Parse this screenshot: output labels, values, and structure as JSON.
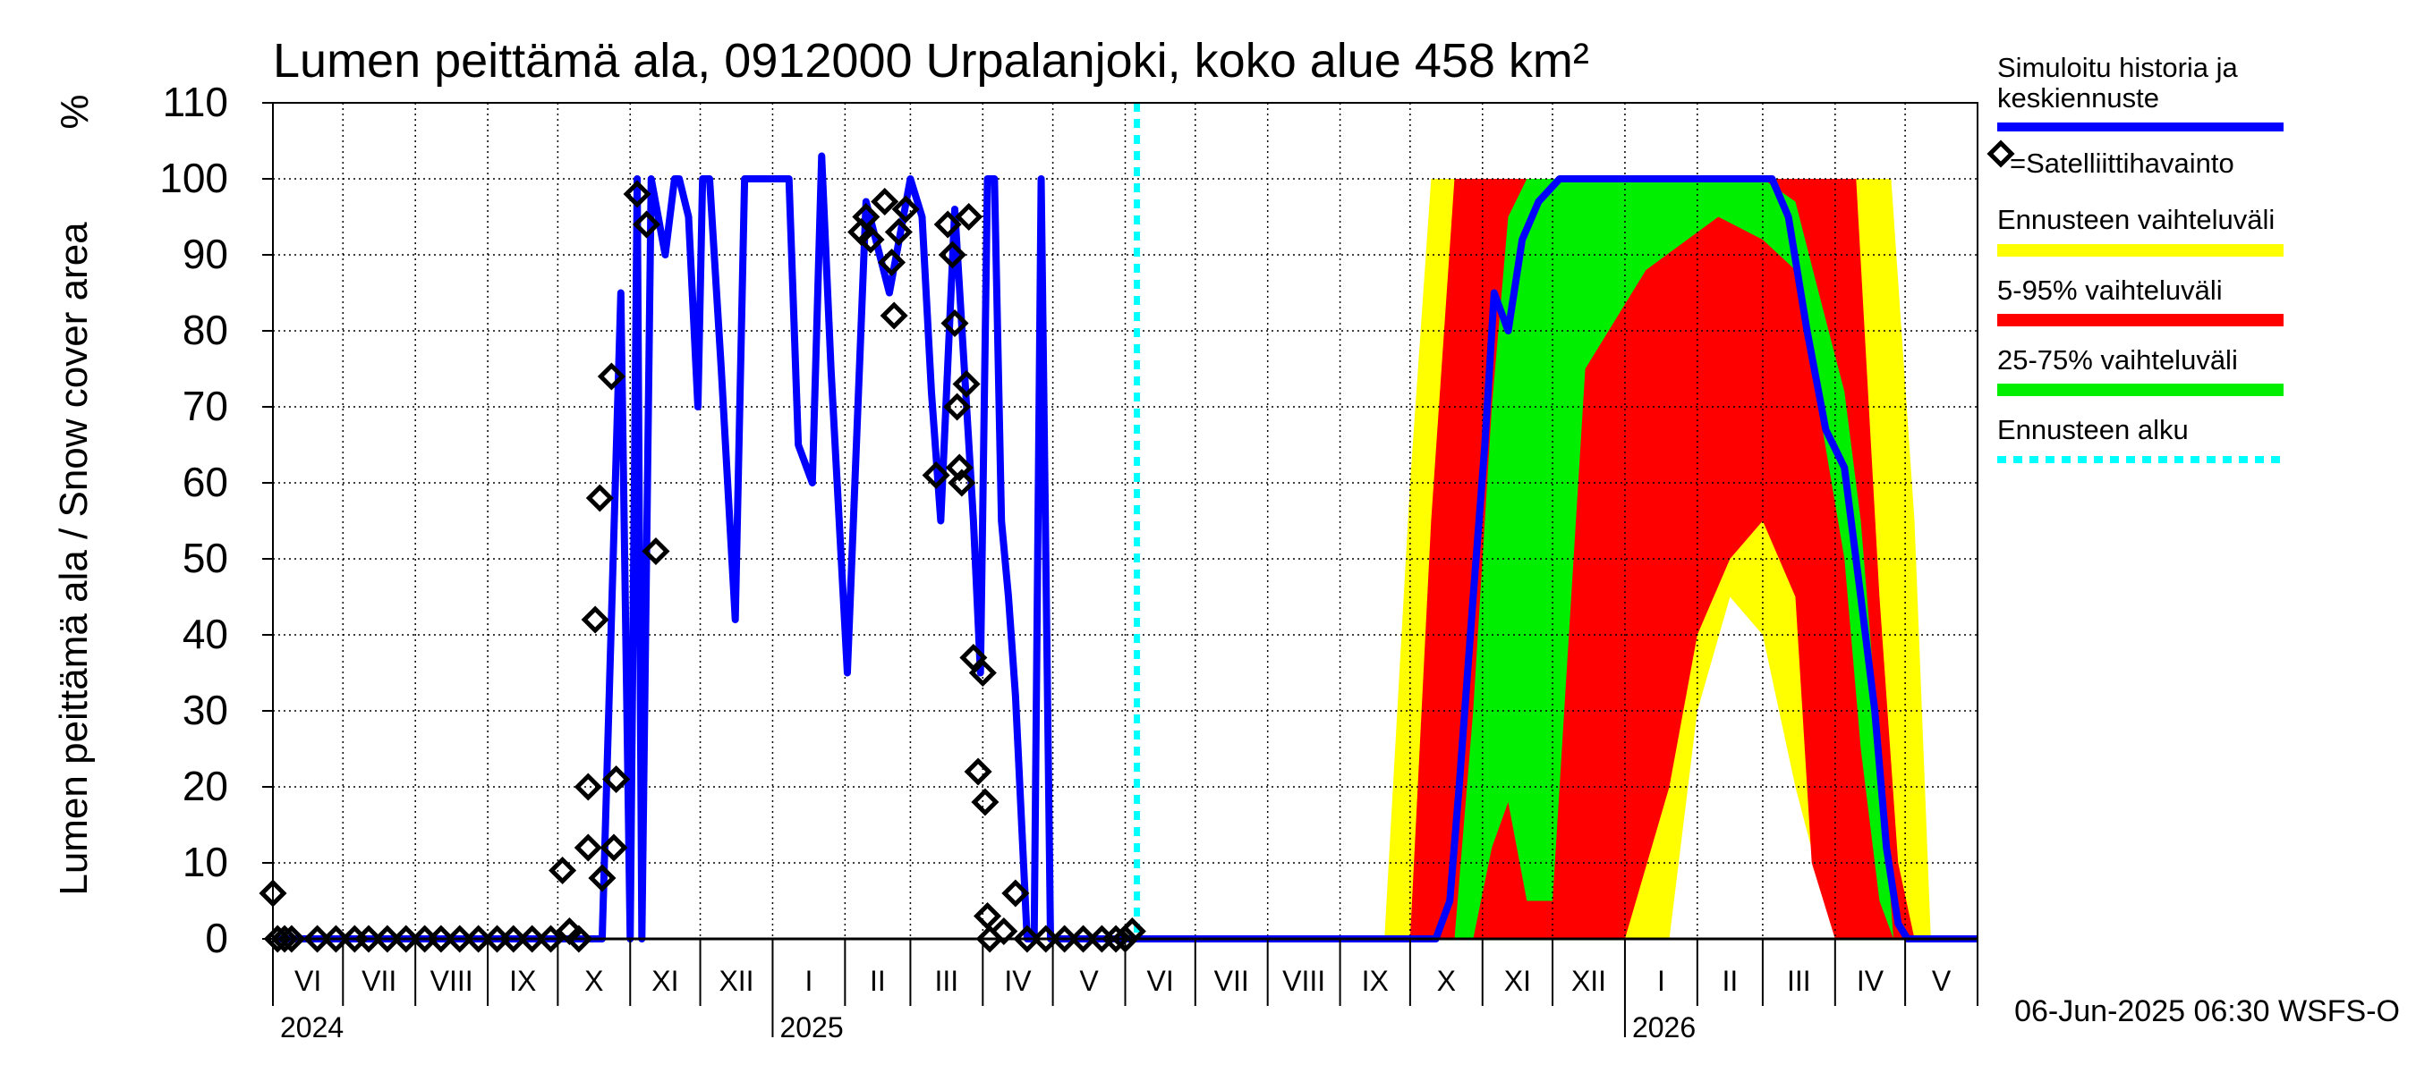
{
  "chart_data": {
    "type": "area",
    "title": "Lumen peittämä ala, 0912000 Urpalanjoki, koko alue 458 km²",
    "ylabel": "Lumen peittämä ala / Snow cover area",
    "yunit": "%",
    "ylim": [
      0,
      110
    ],
    "yticks": [
      0,
      10,
      20,
      30,
      40,
      50,
      60,
      70,
      80,
      90,
      100,
      110
    ],
    "xlim": [
      "2024-06-01",
      "2026-06-01"
    ],
    "grid": true,
    "legend_position": "right",
    "month_labels": [
      "VI",
      "VII",
      "VIII",
      "IX",
      "X",
      "XI",
      "XII",
      "I",
      "II",
      "III",
      "IV",
      "V",
      "VI",
      "VII",
      "VIII",
      "IX",
      "X",
      "XI",
      "XII",
      "I",
      "II",
      "III",
      "IV",
      "V"
    ],
    "year_labels": [
      "2024",
      "2025",
      "2026"
    ],
    "forecast_start": "2025-06-06",
    "footer": "06-Jun-2025 06:30 WSFS-O",
    "legend": {
      "simulated": "Simuloitu historia ja keskiennuste",
      "satellite": "=Satelliittihavainto",
      "range_full": "Ennusteen vaihteluväli",
      "range_5_95": "5-95% vaihteluväli",
      "range_25_75": "25-75% vaihteluväli",
      "forecast_start": "Ennusteen alku"
    },
    "colors": {
      "simulated": "#0000ff",
      "satellite": "#000000",
      "range_full": "#ffff00",
      "range_5_95": "#ff0000",
      "range_25_75": "#00ee00",
      "forecast_start": "#00ffff"
    },
    "history": {
      "x": [
        "2024-06-01",
        "2024-10-20",
        "2024-10-28",
        "2024-11-01",
        "2024-11-04",
        "2024-11-06",
        "2024-11-10",
        "2024-11-16",
        "2024-11-20",
        "2024-11-22",
        "2024-11-26",
        "2024-11-30",
        "2024-12-02",
        "2024-12-05",
        "2024-12-10",
        "2024-12-16",
        "2024-12-20",
        "2024-12-28",
        "2025-01-08",
        "2025-01-12",
        "2025-01-18",
        "2025-01-22",
        "2025-01-26",
        "2025-02-02",
        "2025-02-10",
        "2025-02-20",
        "2025-03-01",
        "2025-03-06",
        "2025-03-10",
        "2025-03-14",
        "2025-03-20",
        "2025-03-28",
        "2025-03-31",
        "2025-04-03",
        "2025-04-06",
        "2025-04-09",
        "2025-04-12",
        "2025-04-15",
        "2025-04-20",
        "2025-04-23",
        "2025-04-26",
        "2025-04-30",
        "2025-06-06"
      ],
      "y": [
        0,
        0,
        85,
        0,
        100,
        0,
        100,
        90,
        100,
        100,
        95,
        70,
        100,
        100,
        75,
        42,
        100,
        100,
        100,
        65,
        60,
        103,
        75,
        35,
        97,
        85,
        100,
        95,
        72,
        55,
        96,
        55,
        35,
        100,
        100,
        55,
        45,
        32,
        0,
        0,
        100,
        0,
        0
      ]
    },
    "forecast_median": {
      "x": [
        "2025-06-06",
        "2025-10-12",
        "2025-10-18",
        "2025-10-22",
        "2025-10-28",
        "2025-11-02",
        "2025-11-06",
        "2025-11-12",
        "2025-11-18",
        "2025-11-25",
        "2025-12-04",
        "2025-12-15",
        "2026-01-15",
        "2026-02-15",
        "2026-03-05",
        "2026-03-12",
        "2026-03-20",
        "2026-03-28",
        "2026-04-05",
        "2026-04-12",
        "2026-04-18",
        "2026-04-23",
        "2026-04-28",
        "2026-05-02",
        "2026-06-01"
      ],
      "y": [
        0,
        0,
        5,
        20,
        45,
        65,
        85,
        80,
        92,
        97,
        100,
        100,
        100,
        100,
        100,
        95,
        80,
        67,
        62,
        45,
        30,
        12,
        2,
        0,
        0
      ]
    },
    "forecast_range_full": {
      "x": [
        "2025-06-06",
        "2025-09-20",
        "2025-10-01",
        "2025-10-10",
        "2025-10-20",
        "2025-11-01",
        "2025-12-01",
        "2026-01-01",
        "2026-01-20",
        "2026-02-01",
        "2026-02-15",
        "2026-03-01",
        "2026-03-15",
        "2026-04-01",
        "2026-04-15",
        "2026-04-25",
        "2026-05-05",
        "2026-05-12",
        "2026-06-01"
      ],
      "lower": [
        0,
        0,
        0,
        0,
        0,
        0,
        0,
        0,
        0,
        30,
        45,
        40,
        20,
        0,
        0,
        0,
        0,
        0,
        0
      ],
      "upper": [
        0,
        0,
        60,
        100,
        100,
        100,
        100,
        100,
        100,
        100,
        100,
        100,
        100,
        100,
        100,
        100,
        55,
        0,
        0
      ]
    },
    "forecast_range_5_95": {
      "x": [
        "2025-06-06",
        "2025-10-01",
        "2025-10-10",
        "2025-10-20",
        "2025-11-01",
        "2025-12-01",
        "2026-01-01",
        "2026-01-20",
        "2026-02-01",
        "2026-02-15",
        "2026-03-01",
        "2026-03-15",
        "2026-03-22",
        "2026-04-01",
        "2026-04-10",
        "2026-04-20",
        "2026-04-28",
        "2026-05-05",
        "2026-06-01"
      ],
      "lower": [
        0,
        0,
        0,
        0,
        0,
        0,
        0,
        20,
        40,
        50,
        55,
        45,
        10,
        0,
        0,
        0,
        0,
        0,
        0
      ],
      "upper": [
        0,
        0,
        55,
        100,
        100,
        100,
        100,
        100,
        100,
        100,
        100,
        100,
        100,
        100,
        100,
        45,
        10,
        0,
        0
      ]
    },
    "forecast_range_25_75": {
      "x": [
        "2025-06-06",
        "2025-10-20",
        "2025-10-28",
        "2025-11-05",
        "2025-11-12",
        "2025-11-20",
        "2025-12-01",
        "2025-12-15",
        "2026-01-10",
        "2026-02-10",
        "2026-03-01",
        "2026-03-15",
        "2026-03-25",
        "2026-04-05",
        "2026-04-12",
        "2026-04-20",
        "2026-04-26",
        "2026-06-01"
      ],
      "lower": [
        0,
        0,
        0,
        12,
        18,
        5,
        5,
        75,
        88,
        95,
        92,
        88,
        70,
        50,
        25,
        5,
        0,
        0
      ],
      "upper": [
        0,
        0,
        30,
        70,
        95,
        100,
        100,
        100,
        100,
        100,
        100,
        97,
        85,
        72,
        55,
        25,
        0,
        0
      ]
    },
    "satellite": [
      {
        "x": "2024-06-01",
        "y": 6
      },
      {
        "x": "2024-06-03",
        "y": 0
      },
      {
        "x": "2024-06-06",
        "y": 0
      },
      {
        "x": "2024-06-09",
        "y": 0
      },
      {
        "x": "2024-06-20",
        "y": 0
      },
      {
        "x": "2024-06-28",
        "y": 0
      },
      {
        "x": "2024-07-06",
        "y": 0
      },
      {
        "x": "2024-07-12",
        "y": 0
      },
      {
        "x": "2024-07-20",
        "y": 0
      },
      {
        "x": "2024-07-28",
        "y": 0
      },
      {
        "x": "2024-08-05",
        "y": 0
      },
      {
        "x": "2024-08-12",
        "y": 0
      },
      {
        "x": "2024-08-20",
        "y": 0
      },
      {
        "x": "2024-08-28",
        "y": 0
      },
      {
        "x": "2024-09-05",
        "y": 0
      },
      {
        "x": "2024-09-12",
        "y": 0
      },
      {
        "x": "2024-09-20",
        "y": 0
      },
      {
        "x": "2024-09-28",
        "y": 0
      },
      {
        "x": "2024-10-03",
        "y": 9
      },
      {
        "x": "2024-10-06",
        "y": 1
      },
      {
        "x": "2024-10-10",
        "y": 0
      },
      {
        "x": "2024-10-14",
        "y": 20
      },
      {
        "x": "2024-10-14",
        "y": 12
      },
      {
        "x": "2024-10-17",
        "y": 42
      },
      {
        "x": "2024-10-19",
        "y": 58
      },
      {
        "x": "2024-10-20",
        "y": 8
      },
      {
        "x": "2024-10-24",
        "y": 74
      },
      {
        "x": "2024-10-25",
        "y": 12
      },
      {
        "x": "2024-10-26",
        "y": 21
      },
      {
        "x": "2024-11-04",
        "y": 98
      },
      {
        "x": "2024-11-08",
        "y": 94
      },
      {
        "x": "2024-11-12",
        "y": 51
      },
      {
        "x": "2025-02-08",
        "y": 93
      },
      {
        "x": "2025-02-10",
        "y": 95
      },
      {
        "x": "2025-02-12",
        "y": 92
      },
      {
        "x": "2025-02-18",
        "y": 97
      },
      {
        "x": "2025-02-21",
        "y": 89
      },
      {
        "x": "2025-02-22",
        "y": 82
      },
      {
        "x": "2025-02-24",
        "y": 93
      },
      {
        "x": "2025-02-27",
        "y": 96
      },
      {
        "x": "2025-03-12",
        "y": 61
      },
      {
        "x": "2025-03-17",
        "y": 94
      },
      {
        "x": "2025-03-19",
        "y": 90
      },
      {
        "x": "2025-03-20",
        "y": 81
      },
      {
        "x": "2025-03-21",
        "y": 70
      },
      {
        "x": "2025-03-22",
        "y": 62
      },
      {
        "x": "2025-03-23",
        "y": 60
      },
      {
        "x": "2025-03-25",
        "y": 73
      },
      {
        "x": "2025-03-26",
        "y": 95
      },
      {
        "x": "2025-03-28",
        "y": 37
      },
      {
        "x": "2025-03-30",
        "y": 22
      },
      {
        "x": "2025-04-01",
        "y": 35
      },
      {
        "x": "2025-04-02",
        "y": 18
      },
      {
        "x": "2025-04-03",
        "y": 3
      },
      {
        "x": "2025-04-04",
        "y": 0
      },
      {
        "x": "2025-04-10",
        "y": 1
      },
      {
        "x": "2025-04-15",
        "y": 6
      },
      {
        "x": "2025-04-20",
        "y": 0
      },
      {
        "x": "2025-04-28",
        "y": 0
      },
      {
        "x": "2025-05-06",
        "y": 0
      },
      {
        "x": "2025-05-14",
        "y": 0
      },
      {
        "x": "2025-05-22",
        "y": 0
      },
      {
        "x": "2025-05-28",
        "y": 0
      },
      {
        "x": "2025-06-01",
        "y": 0
      },
      {
        "x": "2025-06-04",
        "y": 1
      }
    ]
  }
}
